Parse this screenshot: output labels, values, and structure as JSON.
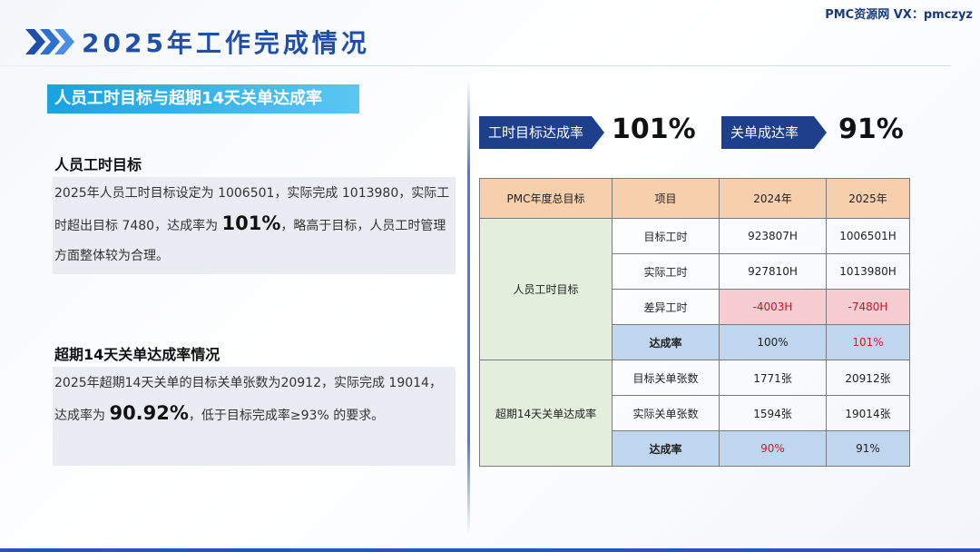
{
  "watermark": "PMC资源网 VX：pmczyz",
  "page_title": "2025年工作完成情况",
  "section_title": "人员工时目标与超期14天关单达成率",
  "labor": {
    "heading": "人员工时目标",
    "text_a": "2025年人员工时目标设定为 1006501，实际完成 1013980，实际工时超出目标 7480，达成率为 ",
    "highlight": "101%",
    "text_b": "，略高于目标，人员工时管理方面整体较为合理。"
  },
  "closure": {
    "heading": "超期14天关单达成率情况",
    "text_a": "2025年超期14天关单的目标关单张数为20912，实际完成 19014，达成率为 ",
    "highlight": "90.92%",
    "text_b": "，低于目标完成率≥93% 的要求。"
  },
  "kpis": [
    {
      "label": "工时目标达成率",
      "value": "101%"
    },
    {
      "label": "关单成达率",
      "value": "91%"
    }
  ],
  "table": {
    "headers": [
      "PMC年度总目标",
      "项目",
      "2024年",
      "2025年"
    ],
    "groups": [
      {
        "name": "人员工时目标",
        "rows": [
          {
            "item": "目标工时",
            "y2024": "923807H",
            "y2025": "1006501H"
          },
          {
            "item": "实际工时",
            "y2024": "927810H",
            "y2025": "1013980H"
          },
          {
            "item": "差异工时",
            "y2024": "-4003H",
            "y2025": "-7480H"
          },
          {
            "item": "达成率",
            "y2024": "100%",
            "y2025": "101%"
          }
        ]
      },
      {
        "name": "超期14天关单达成率",
        "rows": [
          {
            "item": "目标关单张数",
            "y2024": "1771张",
            "y2025": "20912张"
          },
          {
            "item": "实际关单张数",
            "y2024": "1594张",
            "y2025": "19014张"
          },
          {
            "item": "达成率",
            "y2024": "90%",
            "y2025": "91%"
          }
        ]
      }
    ]
  }
}
